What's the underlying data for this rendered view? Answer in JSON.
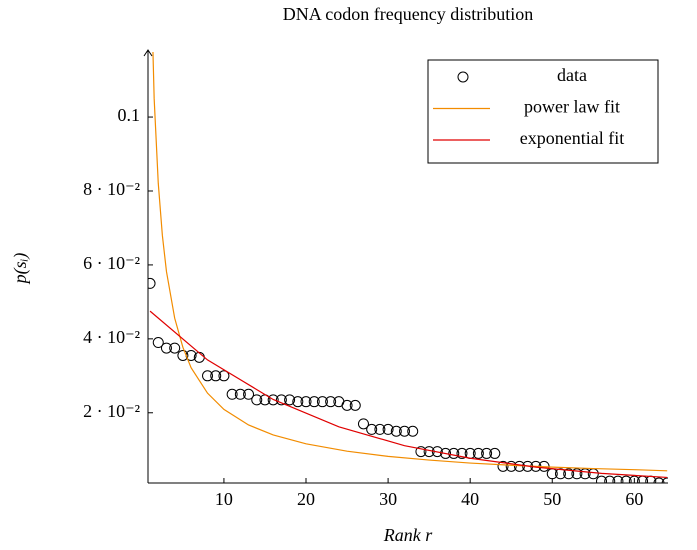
{
  "chart_data": {
    "type": "scatter",
    "title": "DNA codon frequency distribution",
    "xlabel": "Rank r",
    "ylabel": "p(sᵢ)",
    "xlim": [
      0.75,
      64.1
    ],
    "ylim": [
      0.001,
      0.1176
    ],
    "xticks": [
      10,
      20,
      30,
      40,
      50,
      60
    ],
    "yticks": [
      {
        "value": 0.02,
        "label": "2 · 10⁻²"
      },
      {
        "value": 0.04,
        "label": "4 · 10⁻²"
      },
      {
        "value": 0.06,
        "label": "6 · 10⁻²"
      },
      {
        "value": 0.08,
        "label": "8 · 10⁻²"
      },
      0.1
    ],
    "legend": "upper right",
    "series": [
      {
        "name": "data",
        "kind": "marker",
        "color": "#000000",
        "x": [
          1,
          2,
          3,
          4,
          5,
          6,
          7,
          8,
          9,
          10,
          11,
          12,
          13,
          14,
          15,
          16,
          17,
          18,
          19,
          20,
          21,
          22,
          23,
          24,
          25,
          26,
          27,
          28,
          29,
          30,
          31,
          32,
          33,
          34,
          35,
          36,
          37,
          38,
          39,
          40,
          41,
          42,
          43,
          44,
          45,
          46,
          47,
          48,
          49,
          50,
          51,
          52,
          53,
          54,
          55,
          56,
          57,
          58,
          59,
          60,
          61,
          62,
          63,
          64
        ],
        "values": [
          0.055,
          0.039,
          0.0375,
          0.0375,
          0.0355,
          0.0355,
          0.035,
          0.03,
          0.03,
          0.03,
          0.025,
          0.025,
          0.025,
          0.0235,
          0.0235,
          0.0235,
          0.0235,
          0.0235,
          0.023,
          0.023,
          0.023,
          0.023,
          0.023,
          0.023,
          0.022,
          0.022,
          0.017,
          0.0155,
          0.0155,
          0.0155,
          0.015,
          0.015,
          0.015,
          0.0095,
          0.0095,
          0.0095,
          0.009,
          0.009,
          0.009,
          0.009,
          0.009,
          0.009,
          0.009,
          0.0055,
          0.0055,
          0.0055,
          0.0055,
          0.0055,
          0.0055,
          0.0035,
          0.0035,
          0.0035,
          0.0035,
          0.0035,
          0.0035,
          0.0015,
          0.0015,
          0.0015,
          0.0015,
          0.0015,
          0.0015,
          0.0015,
          0.001,
          0.001
        ]
      },
      {
        "name": "power law fit",
        "kind": "line",
        "color": "#f28c00",
        "x": [
          1,
          1.5,
          2,
          2.5,
          3,
          4,
          5,
          6,
          8,
          10,
          13,
          16,
          20,
          25,
          30,
          35,
          40,
          45,
          50,
          55,
          60,
          64
        ],
        "values": [
          0.148,
          0.105,
          0.0821,
          0.068,
          0.0582,
          0.0456,
          0.0377,
          0.0322,
          0.0253,
          0.0209,
          0.0167,
          0.014,
          0.0116,
          0.0096,
          0.0082,
          0.0072,
          0.0064,
          0.0058,
          0.0053,
          0.0049,
          0.0046,
          0.0043
        ]
      },
      {
        "name": "exponential fit",
        "kind": "line",
        "color": "#e00000",
        "x": [
          1,
          8,
          16,
          24,
          32,
          40,
          48,
          56,
          64
        ],
        "values": [
          0.0475,
          0.0343,
          0.0236,
          0.0162,
          0.0111,
          0.0077,
          0.0053,
          0.0036,
          0.0025
        ]
      }
    ]
  }
}
